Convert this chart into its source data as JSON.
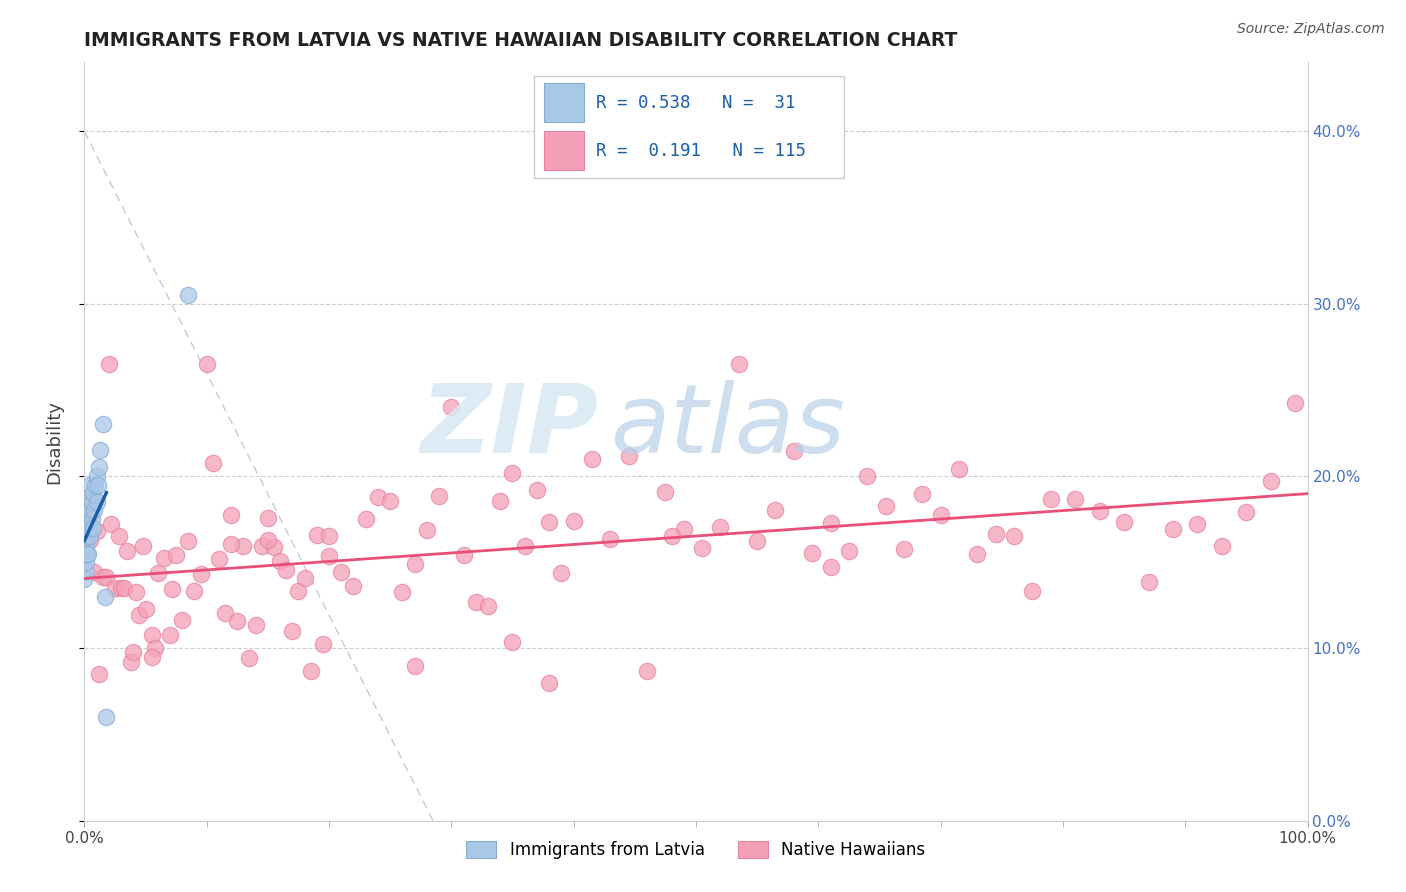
{
  "title": "IMMIGRANTS FROM LATVIA VS NATIVE HAWAIIAN DISABILITY CORRELATION CHART",
  "source": "Source: ZipAtlas.com",
  "ylabel": "Disability",
  "xlim": [
    0.0,
    1.0
  ],
  "ylim": [
    0.0,
    0.44
  ],
  "ytick_vals": [
    0.0,
    0.1,
    0.2,
    0.3,
    0.4
  ],
  "legend_labels": [
    "Immigrants from Latvia",
    "Native Hawaiians"
  ],
  "blue_color": "#a8c8e8",
  "pink_color": "#f4a0b8",
  "blue_edge_color": "#88aad0",
  "pink_edge_color": "#e880a0",
  "blue_line_color": "#1a5fa8",
  "pink_line_color": "#e8507a",
  "R_blue": "0.538",
  "N_blue": "31",
  "R_pink": "0.191",
  "N_pink": "115",
  "watermark_zip": "ZIP",
  "watermark_atlas": "atlas",
  "background_color": "#ffffff",
  "grid_color": "#d0d0d0",
  "right_axis_color": "#4472c4",
  "title_color": "#222222",
  "source_color": "#555555"
}
